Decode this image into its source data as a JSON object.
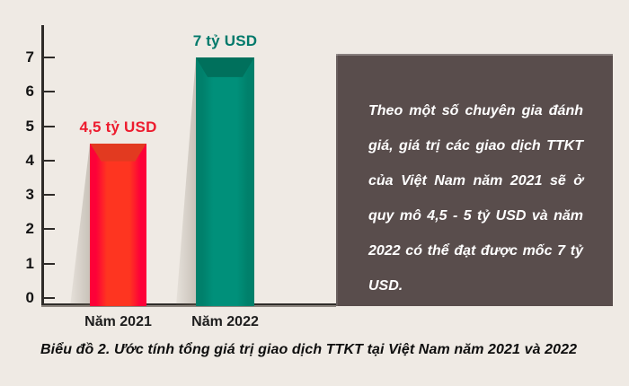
{
  "page": {
    "background": "#EFEAE4",
    "axis_color": "#2E2B28"
  },
  "chart_data": {
    "type": "bar",
    "title": "",
    "xlabel": "",
    "ylabel": "",
    "categories": [
      "Năm 2021",
      "Năm 2022"
    ],
    "values": [
      4.5,
      7
    ],
    "value_labels": [
      "4,5 tỷ USD",
      "7 tỷ USD"
    ],
    "yticks": [
      0,
      1,
      2,
      3,
      4,
      5,
      6,
      7
    ],
    "ylim": [
      0,
      7.8
    ],
    "grid": false,
    "legend": "none",
    "series_colors": [
      {
        "face_center": "#FE3520",
        "face_edge": "#FD0138",
        "bevel": "#E23A20",
        "label": "#ED1C2E"
      },
      {
        "face_center": "#00907A",
        "face_edge": "#00806B",
        "bevel": "#00705C",
        "label": "#00796A"
      }
    ],
    "caption": "Biểu đồ 2. Ước tính tổng giá trị giao dịch TTKT tại Việt Nam năm 2021 và 2022"
  },
  "callout": {
    "text": "Theo một số chuyên gia đánh giá, giá trị các giao dịch TTKT của Việt Nam năm 2021 sẽ ở quy mô 4,5 - 5 tỷ USD và năm 2022 có thể đạt được mốc 7 tỷ USD.",
    "background": "#594D4C",
    "text_color": "#FFFFFF"
  }
}
